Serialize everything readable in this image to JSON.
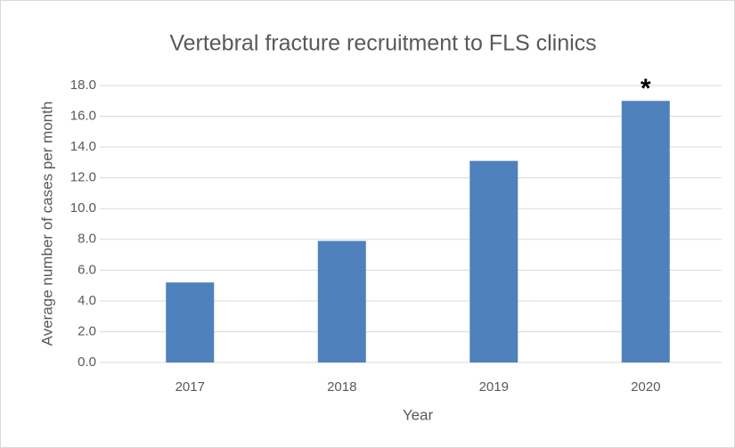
{
  "chart_data": {
    "type": "bar",
    "title": "Vertebral fracture recruitment to FLS clinics",
    "x_label": "Year",
    "y_label": "Average number of cases per month",
    "categories": [
      "2017",
      "2018",
      "2019",
      "2020"
    ],
    "values": [
      5.2,
      7.9,
      13.1,
      17.0
    ],
    "color": "#4f81bd",
    "annotation": "*",
    "ylim": [
      0,
      18
    ],
    "yticks": [
      {
        "value": 0,
        "label": "0.0"
      },
      {
        "value": 2,
        "label": "2.0"
      },
      {
        "value": 4,
        "label": "4.0"
      },
      {
        "value": 6,
        "label": "6.0"
      },
      {
        "value": 8,
        "label": "8.0"
      },
      {
        "value": 10,
        "label": "10.0"
      },
      {
        "value": 12,
        "label": "12.0"
      },
      {
        "value": 14,
        "label": "14.0"
      },
      {
        "value": 16,
        "label": "16.0"
      },
      {
        "value": 18,
        "label": "18.0"
      }
    ],
    "grid": true
  }
}
